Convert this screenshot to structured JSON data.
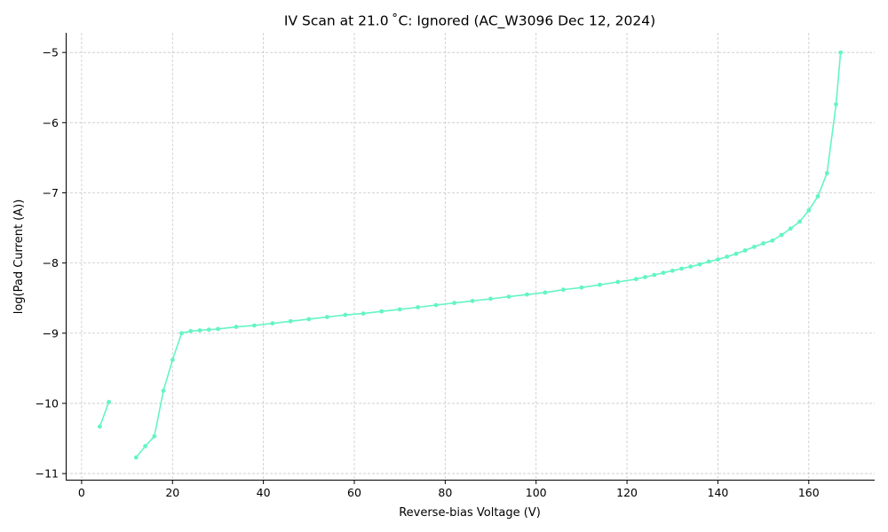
{
  "chart_data": {
    "type": "line",
    "title": "IV Scan at 21.0 ˚C: Ignored (AC_W3096 Dec 12, 2024)",
    "xlabel": "Reverse-bias Voltage (V)",
    "ylabel": "log(Pad Current (A))",
    "xlim": [
      -3.5,
      174.5
    ],
    "ylim": [
      -11.1,
      -4.72
    ],
    "xticks": [
      0,
      20,
      40,
      60,
      80,
      100,
      120,
      140,
      160
    ],
    "xtick_labels": [
      "0",
      "20",
      "40",
      "60",
      "80",
      "100",
      "120",
      "140",
      "160"
    ],
    "yticks": [
      -11,
      -10,
      -9,
      -8,
      -7,
      -6,
      -5
    ],
    "ytick_labels": [
      "−11",
      "−10",
      "−9",
      "−8",
      "−7",
      "−6",
      "−5"
    ],
    "grid": true,
    "line_color": "#64f5c2",
    "series": [
      {
        "name": "",
        "segments": [
          [
            [
              4,
              -10.33
            ],
            [
              6,
              -9.98
            ]
          ],
          [
            [
              12,
              -10.77
            ],
            [
              14,
              -10.61
            ],
            [
              16,
              -10.47
            ],
            [
              18,
              -9.82
            ],
            [
              20,
              -9.38
            ],
            [
              22,
              -9.0
            ],
            [
              24,
              -8.97
            ],
            [
              26,
              -8.96
            ],
            [
              28,
              -8.95
            ],
            [
              30,
              -8.94
            ],
            [
              34,
              -8.91
            ],
            [
              38,
              -8.89
            ],
            [
              42,
              -8.86
            ],
            [
              46,
              -8.83
            ],
            [
              50,
              -8.8
            ],
            [
              54,
              -8.77
            ],
            [
              58,
              -8.74
            ],
            [
              62,
              -8.72
            ],
            [
              66,
              -8.69
            ],
            [
              70,
              -8.66
            ],
            [
              74,
              -8.63
            ],
            [
              78,
              -8.6
            ],
            [
              82,
              -8.57
            ],
            [
              86,
              -8.54
            ],
            [
              90,
              -8.51
            ],
            [
              94,
              -8.48
            ],
            [
              98,
              -8.45
            ],
            [
              102,
              -8.42
            ],
            [
              106,
              -8.38
            ],
            [
              110,
              -8.35
            ],
            [
              114,
              -8.31
            ],
            [
              118,
              -8.27
            ],
            [
              122,
              -8.23
            ],
            [
              124,
              -8.2
            ],
            [
              126,
              -8.17
            ],
            [
              128,
              -8.14
            ],
            [
              130,
              -8.11
            ],
            [
              132,
              -8.08
            ],
            [
              134,
              -8.05
            ],
            [
              136,
              -8.02
            ],
            [
              138,
              -7.98
            ],
            [
              140,
              -7.95
            ],
            [
              142,
              -7.91
            ],
            [
              144,
              -7.87
            ],
            [
              146,
              -7.82
            ],
            [
              148,
              -7.77
            ],
            [
              150,
              -7.72
            ],
            [
              152,
              -7.68
            ],
            [
              154,
              -7.6
            ],
            [
              156,
              -7.51
            ],
            [
              158,
              -7.41
            ],
            [
              160,
              -7.25
            ],
            [
              162,
              -7.05
            ],
            [
              164,
              -6.72
            ],
            [
              166,
              -5.74
            ],
            [
              167,
              -5.0
            ]
          ]
        ]
      }
    ]
  }
}
